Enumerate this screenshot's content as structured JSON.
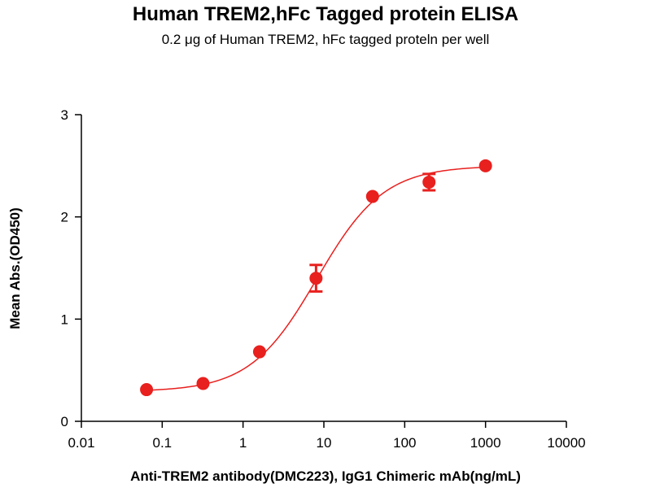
{
  "chart_data": {
    "type": "scatter",
    "title": "Human TREM2,hFc Tagged protein ELISA",
    "subtitle": "0.2 μg of Human TREM2, hFc tagged proteln per well",
    "xlabel": "Anti-TREM2 antibody(DMC223), IgG1 Chimeric mAb(ng/mL)",
    "ylabel": "Mean Abs.(OD450)",
    "x_scale": "log",
    "xlim": [
      0.01,
      10000
    ],
    "ylim": [
      0,
      3
    ],
    "x_ticks": [
      0.01,
      0.1,
      1,
      10,
      100,
      1000,
      10000
    ],
    "x_tick_labels": [
      "0.01",
      "0.1",
      "1",
      "10",
      "100",
      "1000",
      "10000"
    ],
    "y_ticks": [
      0,
      1,
      2,
      3
    ],
    "y_tick_labels": [
      "0",
      "1",
      "2",
      "3"
    ],
    "grid": false,
    "color": "#e8201e",
    "series": [
      {
        "x": [
          0.064,
          0.32,
          1.6,
          8,
          40,
          200,
          1000
        ],
        "y": [
          0.31,
          0.37,
          0.68,
          1.4,
          2.2,
          2.34,
          2.5
        ],
        "error": [
          0.0,
          0.0,
          0.0,
          0.13,
          0.0,
          0.08,
          0.0
        ]
      }
    ],
    "fit": {
      "model": "4PL",
      "bottom": 0.29,
      "top": 2.5,
      "ec50": 8.2,
      "hill": 1.05
    }
  }
}
